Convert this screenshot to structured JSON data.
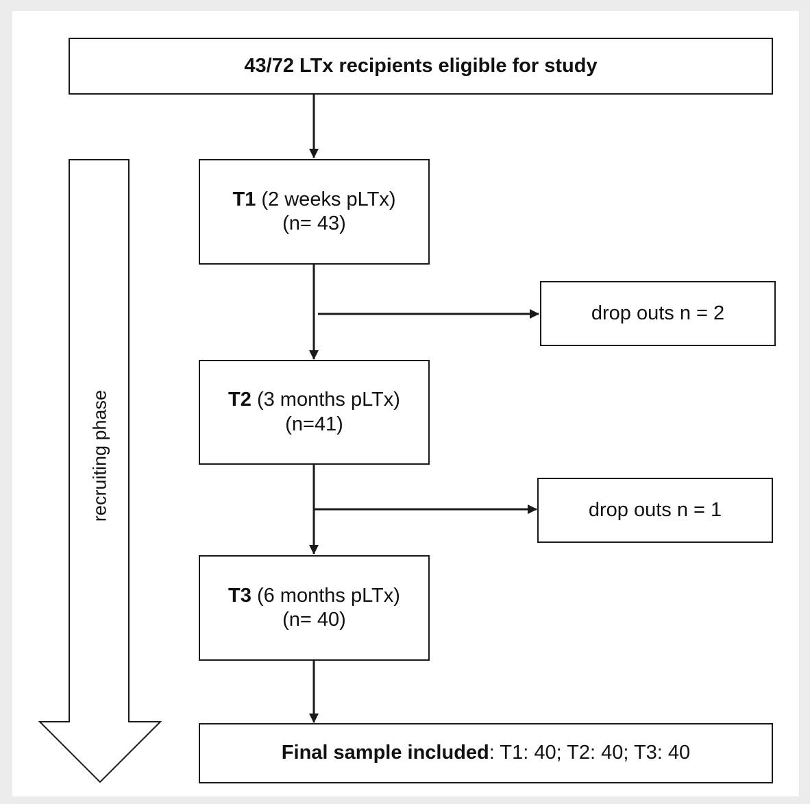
{
  "flowchart": {
    "eligible": {
      "text": "43/72 LTx recipients eligible for study"
    },
    "t1": {
      "label": "T1",
      "detail": " (2 weeks pLTx)",
      "count": "(n= 43)"
    },
    "dropout1": {
      "text": "drop outs n = 2"
    },
    "t2": {
      "label": "T2",
      "detail": " (3 months pLTx)",
      "count": "(n=41)"
    },
    "dropout2": {
      "text": "drop outs n = 1"
    },
    "t3": {
      "label": "T3",
      "detail": " (6 months pLTx)",
      "count": "(n= 40)"
    },
    "final": {
      "label": "Final sample included",
      "detail": ": T1: 40; T2: 40; T3: 40"
    },
    "phase": {
      "text": "recruiting phase"
    }
  }
}
